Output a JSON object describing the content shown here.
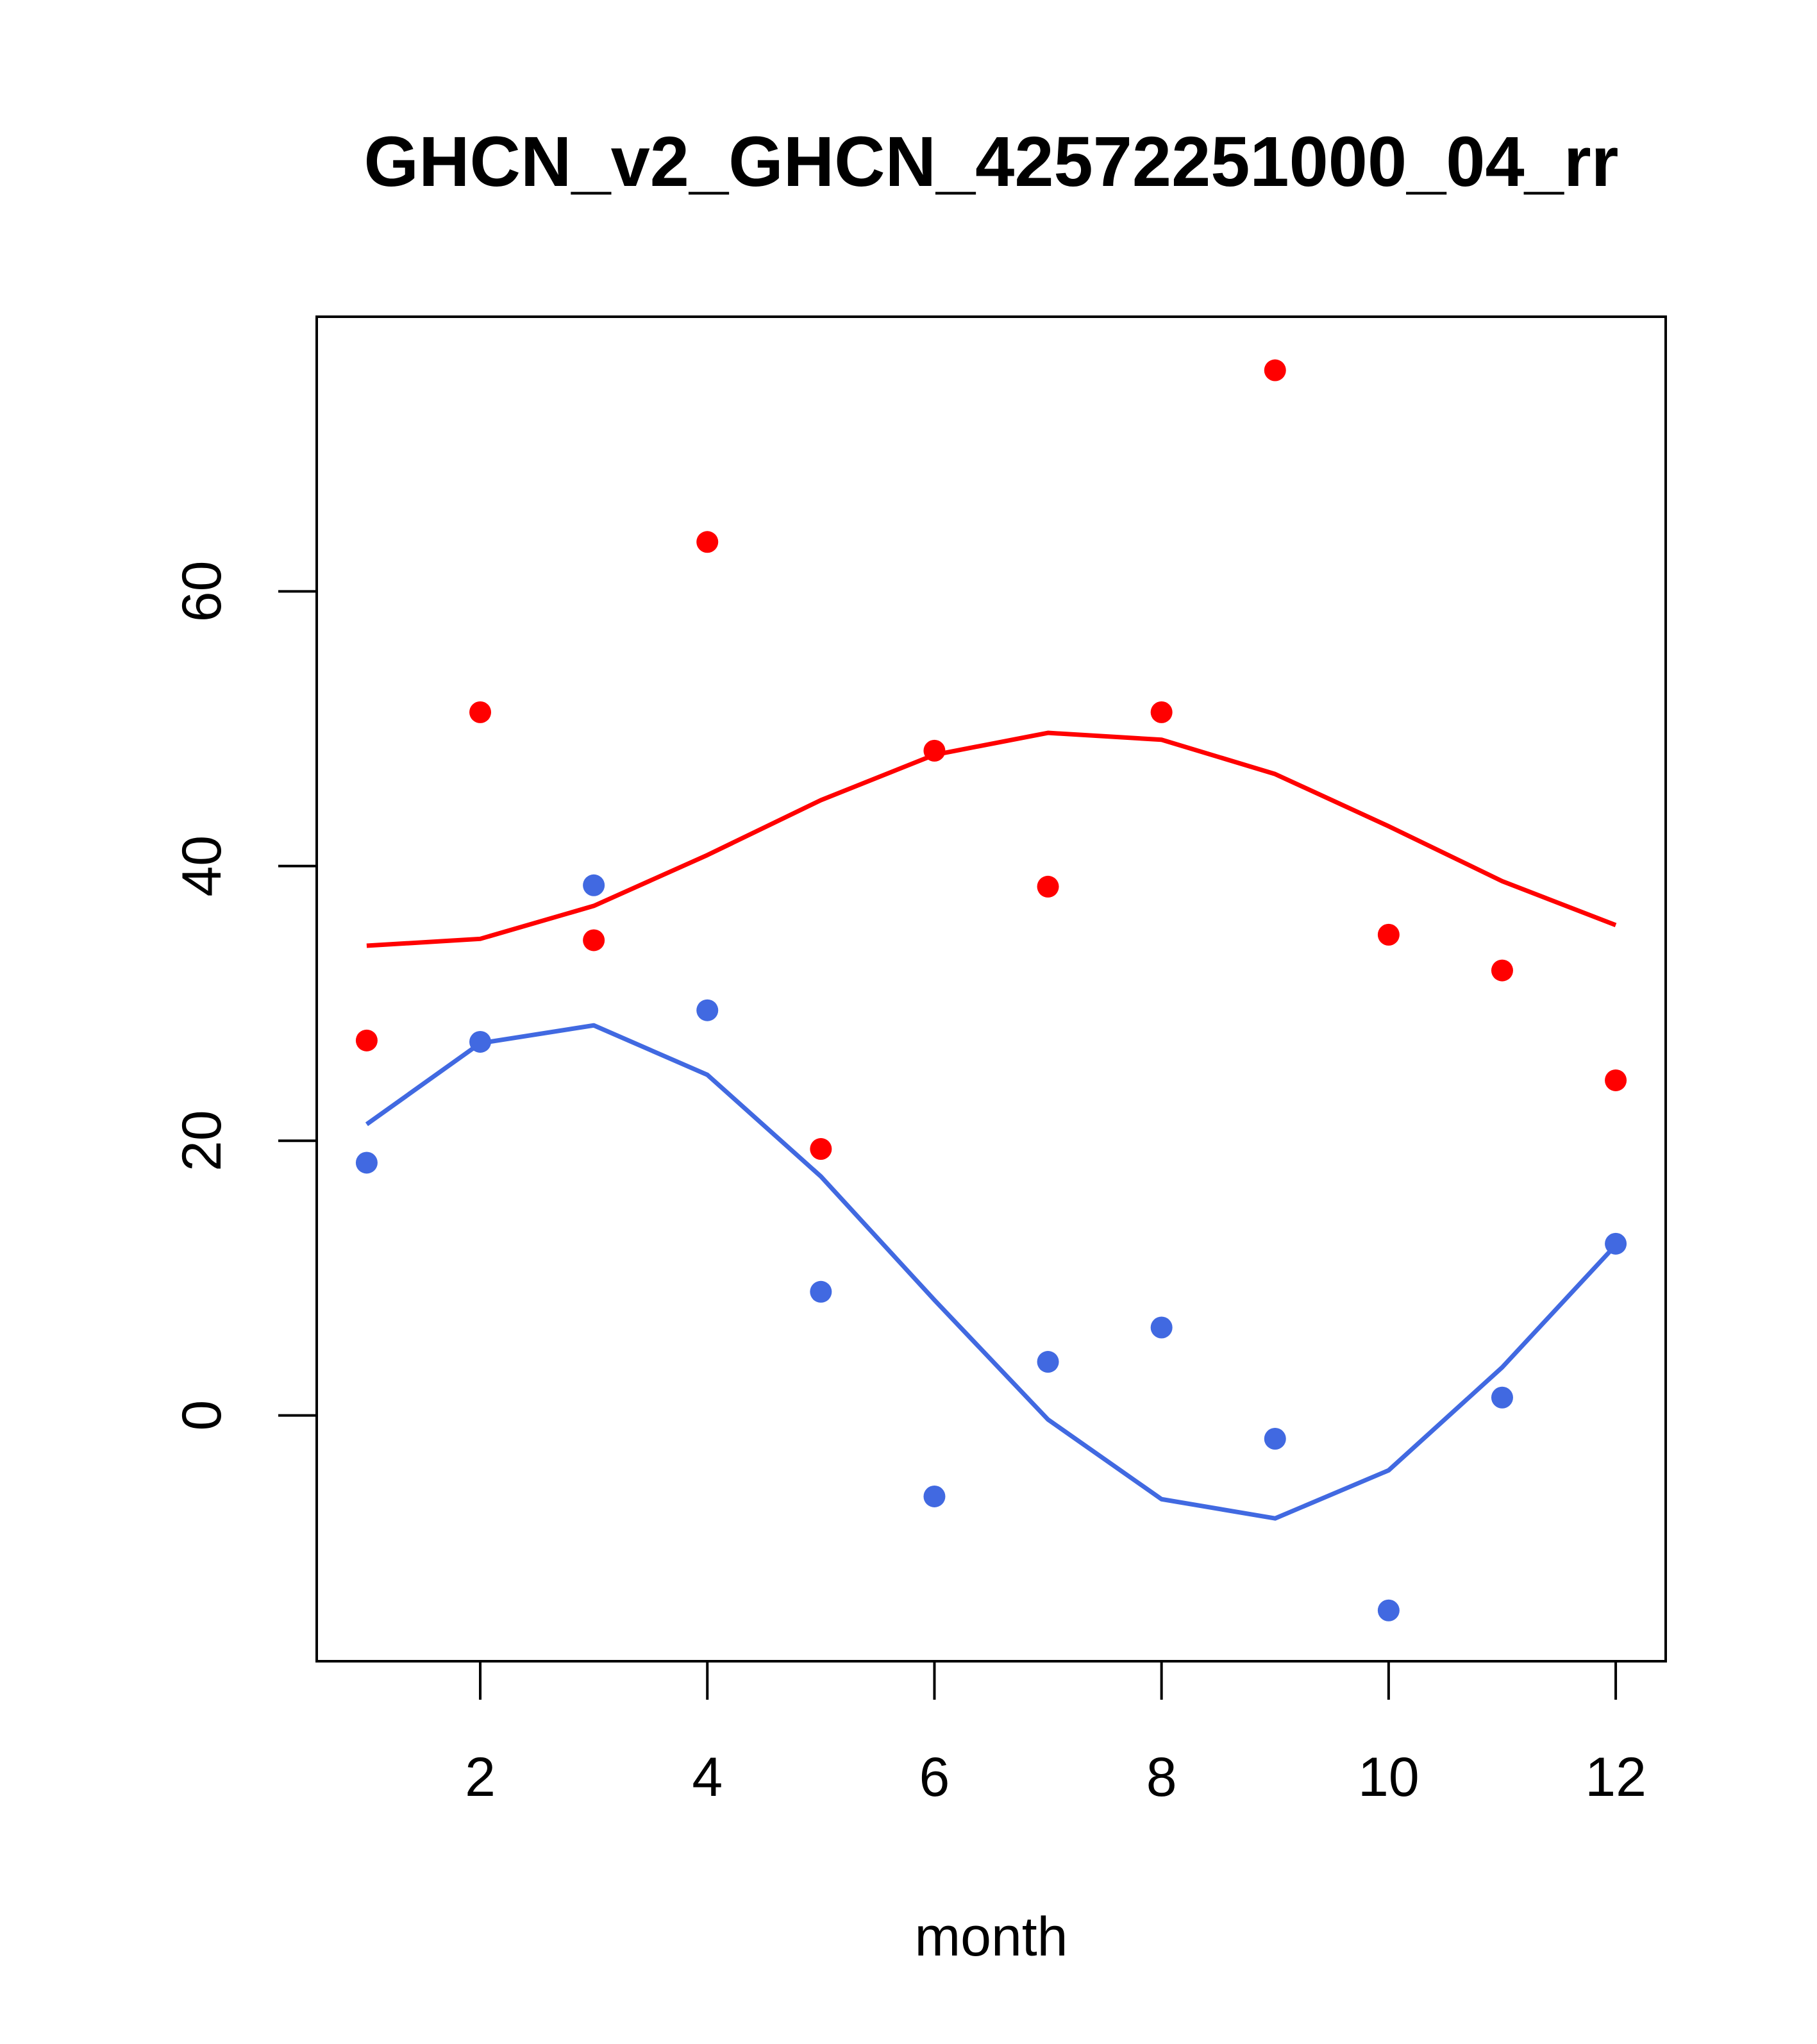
{
  "chart_data": {
    "type": "scatter",
    "title": "GHCN_v2_GHCN_42572251000_04_rr",
    "xlabel": "month",
    "ylabel": "",
    "xlim": [
      0.56,
      12.44
    ],
    "ylim": [
      -17.9,
      80.0
    ],
    "x_ticks": [
      2,
      4,
      6,
      8,
      10,
      12
    ],
    "y_ticks": [
      0,
      20,
      40,
      60
    ],
    "grid": false,
    "legend": "none",
    "x": [
      1,
      2,
      3,
      4,
      5,
      6,
      7,
      8,
      9,
      10,
      11,
      12
    ],
    "series": [
      {
        "color": "#ff0000",
        "points": [
          27.3,
          51.2,
          34.6,
          63.6,
          19.4,
          48.4,
          38.5,
          51.2,
          76.1,
          35.0,
          32.4,
          24.4
        ],
        "line": [
          34.2,
          34.7,
          37.1,
          40.8,
          44.8,
          48.1,
          49.7,
          49.2,
          46.7,
          42.9,
          38.9,
          35.7
        ]
      },
      {
        "color": "#4169e1",
        "points": [
          18.4,
          27.2,
          38.6,
          29.5,
          9.0,
          -5.9,
          3.9,
          6.4,
          -1.7,
          -14.2,
          1.3,
          12.5
        ],
        "line": [
          21.2,
          27.1,
          28.4,
          24.8,
          17.4,
          8.4,
          -0.3,
          -6.1,
          -7.5,
          -4.0,
          3.5,
          12.4
        ]
      }
    ]
  }
}
